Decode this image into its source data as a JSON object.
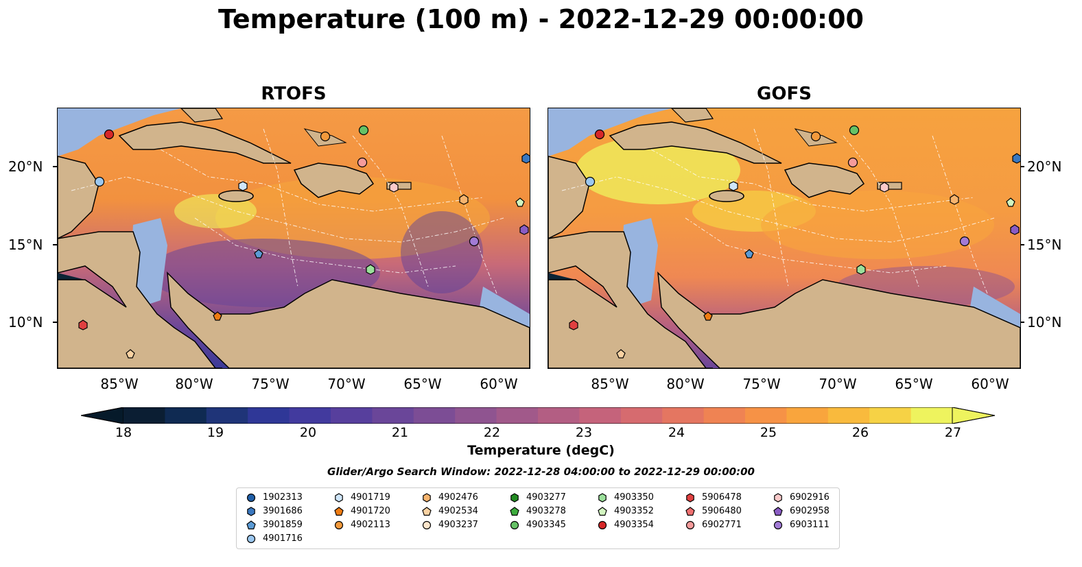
{
  "title": "Temperature (100 m) - 2022-12-29 00:00:00",
  "panels": [
    {
      "name": "RTOFS"
    },
    {
      "name": "GOFS"
    }
  ],
  "lon_labels": [
    "85°W",
    "80°W",
    "75°W",
    "70°W",
    "65°W",
    "60°W"
  ],
  "lat_labels": [
    "20°N",
    "15°N",
    "10°N"
  ],
  "colorbar": {
    "label": "Temperature (degC)",
    "ticks": [
      "18",
      "19",
      "20",
      "21",
      "22",
      "23",
      "24",
      "25",
      "26",
      "27"
    ],
    "colors": [
      "#0b1e33",
      "#0f2a52",
      "#1f3478",
      "#2f3797",
      "#423a9e",
      "#573f9d",
      "#6a4699",
      "#7c4d95",
      "#8f5490",
      "#a1598a",
      "#b35e83",
      "#c5637b",
      "#d66b6f",
      "#e47661",
      "#ef8353",
      "#f69246",
      "#f9a53d",
      "#f9ba3d",
      "#f6d245",
      "#eef35e"
    ],
    "low_extend": "#061a2a",
    "high_extend": "#eef35e"
  },
  "search_window": "Glider/Argo Search Window: 2022-12-28 04:00:00 to 2022-12-29 00:00:00",
  "legend": [
    {
      "id": "1902313",
      "marker": "circle",
      "color": "#1f5fa8"
    },
    {
      "id": "3901686",
      "marker": "hexagon",
      "color": "#3a78c0"
    },
    {
      "id": "3901859",
      "marker": "pentagon",
      "color": "#5b9bd5"
    },
    {
      "id": "4901716",
      "marker": "circle",
      "color": "#9cc8f0"
    },
    {
      "id": "4901719",
      "marker": "hexagon",
      "color": "#cfe6fb"
    },
    {
      "id": "4901720",
      "marker": "pentagon",
      "color": "#f07c12"
    },
    {
      "id": "4902113",
      "marker": "circle",
      "color": "#f39a3c"
    },
    {
      "id": "4902476",
      "marker": "hexagon",
      "color": "#f7b46e"
    },
    {
      "id": "4902534",
      "marker": "pentagon",
      "color": "#fbd2a2"
    },
    {
      "id": "4903237",
      "marker": "circle",
      "color": "#fde6cc"
    },
    {
      "id": "4903277",
      "marker": "hexagon",
      "color": "#228b22"
    },
    {
      "id": "4903278",
      "marker": "pentagon",
      "color": "#3cab3c"
    },
    {
      "id": "4903345",
      "marker": "circle",
      "color": "#66c266"
    },
    {
      "id": "4903350",
      "marker": "hexagon",
      "color": "#9be09b"
    },
    {
      "id": "4903352",
      "marker": "pentagon",
      "color": "#d2f5c0"
    },
    {
      "id": "4903354",
      "marker": "circle",
      "color": "#d62728"
    },
    {
      "id": "5906478",
      "marker": "hexagon",
      "color": "#e04040"
    },
    {
      "id": "5906480",
      "marker": "pentagon",
      "color": "#ef7070"
    },
    {
      "id": "6902771",
      "marker": "circle",
      "color": "#f59b9b"
    },
    {
      "id": "6902916",
      "marker": "hexagon",
      "color": "#fbcaca"
    },
    {
      "id": "6902958",
      "marker": "pentagon",
      "color": "#8a5cc4"
    },
    {
      "id": "6903111",
      "marker": "circle",
      "color": "#a27bd6"
    }
  ],
  "map_colors": {
    "land": "#d1b48c",
    "shallow": "#98b4df",
    "deep_pacific": "#0b2436",
    "coast": "#000000"
  }
}
